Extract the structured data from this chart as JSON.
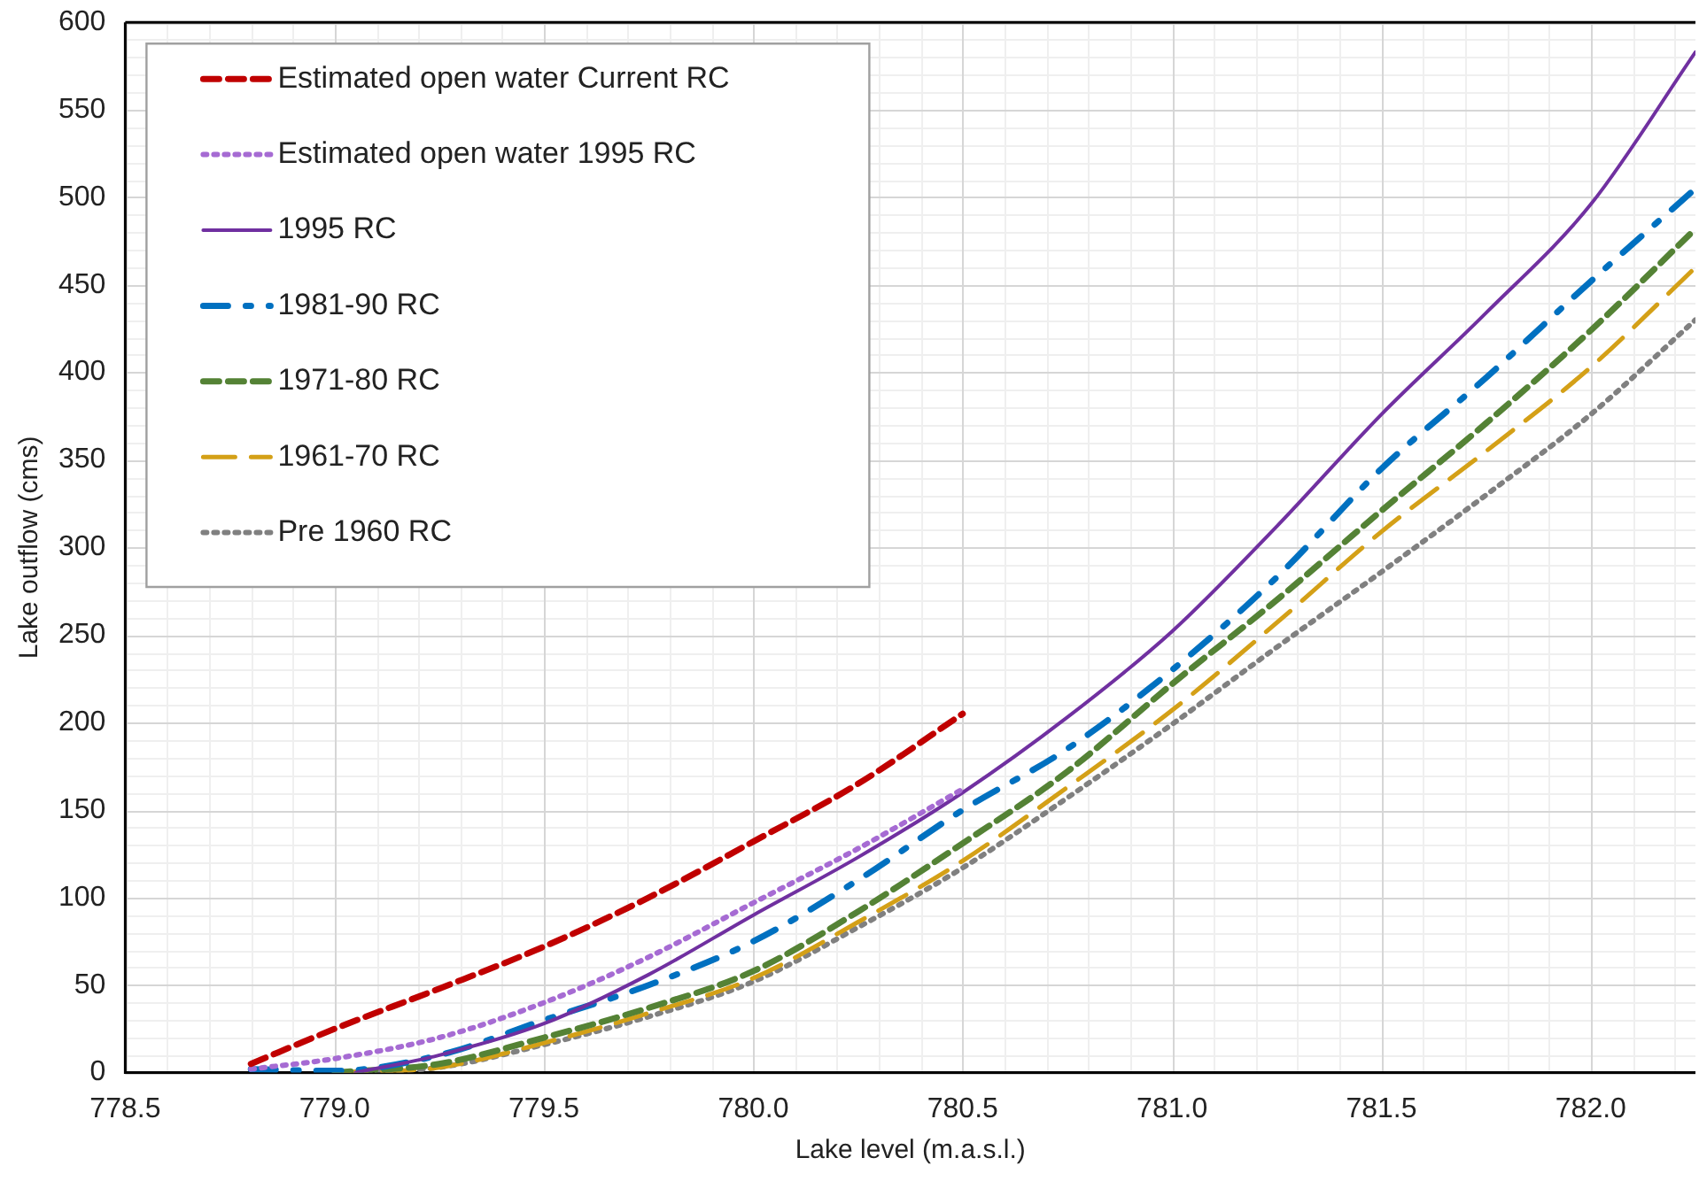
{
  "chart_data": {
    "type": "line",
    "xlabel": "Lake level (m.a.s.l.)",
    "ylabel": "Lake outflow (cms)",
    "xlim": [
      778.5,
      782.25
    ],
    "xticks": [
      778.5,
      {
        "value": 779,
        "label": "779.0"
      },
      779.5,
      {
        "value": 780,
        "label": "780.0"
      },
      780.5,
      {
        "value": 781,
        "label": "781.0"
      },
      781.5,
      {
        "value": 782,
        "label": "782.0"
      }
    ],
    "ylim": [
      0,
      600
    ],
    "yticks": [
      0,
      50,
      100,
      150,
      200,
      250,
      300,
      350,
      400,
      450,
      500,
      550,
      600
    ],
    "grid": true,
    "legend": "top left",
    "marker": "none",
    "series": [
      {
        "name": "Estimated open water Current RC",
        "color": "#c00000",
        "line_style": "dashed",
        "x": [
          778.8,
          779.0,
          779.25,
          779.5,
          779.75,
          780.0,
          780.25,
          780.5
        ],
        "values": [
          5,
          25,
          48,
          72,
          100,
          132,
          165,
          205
        ]
      },
      {
        "name": "Estimated open water 1995 RC",
        "color": "#a66bd3",
        "line_style": "dotted",
        "x": [
          778.8,
          779.0,
          779.25,
          779.5,
          779.75,
          780.0,
          780.25,
          780.5
        ],
        "values": [
          2,
          8,
          20,
          40,
          66,
          97,
          128,
          162
        ]
      },
      {
        "name": "1995 RC",
        "color": "#7030a0",
        "line_style": "solid",
        "x": [
          779.05,
          779.25,
          779.5,
          779.75,
          780.0,
          780.25,
          780.5,
          780.75,
          781.0,
          781.25,
          781.5,
          781.75,
          782.0,
          782.25
        ],
        "values": [
          0,
          10,
          28,
          56,
          90,
          123,
          160,
          203,
          252,
          312,
          376,
          434,
          496,
          583
        ]
      },
      {
        "name": "1981-90 RC",
        "color": "#0070c0",
        "line_style": "dashdot",
        "x": [
          778.8,
          779.0,
          779.25,
          779.5,
          779.75,
          780.0,
          780.25,
          780.5,
          780.75,
          781.0,
          781.25,
          781.5,
          781.75,
          782.0,
          782.25
        ],
        "values": [
          2,
          1,
          10,
          30,
          50,
          75,
          110,
          150,
          185,
          230,
          283,
          345,
          397,
          452,
          505
        ]
      },
      {
        "name": "1971-80 RC",
        "color": "#548235",
        "line_style": "dashed",
        "x": [
          779.0,
          779.25,
          779.5,
          779.75,
          780.0,
          780.25,
          780.5,
          780.75,
          781.0,
          781.25,
          781.5,
          781.75,
          782.0,
          782.25
        ],
        "values": [
          0,
          5,
          20,
          37,
          58,
          92,
          131,
          172,
          222,
          270,
          321,
          371,
          424,
          482
        ]
      },
      {
        "name": "1961-70 RC",
        "color": "#d4a017",
        "line_style": "longdash",
        "x": [
          779.0,
          779.25,
          779.5,
          779.75,
          780.0,
          780.25,
          780.5,
          780.75,
          781.0,
          781.25,
          781.5,
          781.75,
          782.0,
          782.25
        ],
        "values": [
          0,
          3,
          17,
          34,
          54,
          86,
          121,
          163,
          207,
          257,
          309,
          355,
          403,
          460
        ]
      },
      {
        "name": "Pre 1960 RC",
        "color": "#808080",
        "line_style": "dotted",
        "x": [
          779.0,
          779.25,
          779.5,
          779.75,
          780.0,
          780.25,
          780.5,
          780.75,
          781.0,
          781.25,
          781.5,
          781.75,
          782.0,
          782.25
        ],
        "values": [
          0,
          3,
          16,
          32,
          52,
          83,
          117,
          157,
          199,
          243,
          286,
          330,
          376,
          430
        ]
      }
    ]
  }
}
